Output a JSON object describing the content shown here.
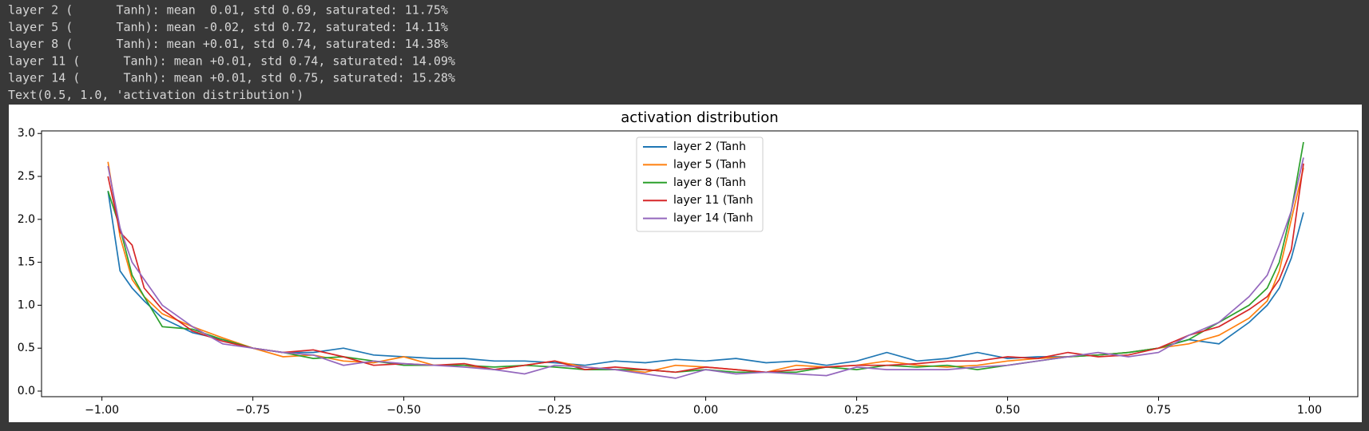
{
  "output_lines": [
    "layer 2 (      Tanh): mean  0.01, std 0.69, saturated: 11.75%",
    "layer 5 (      Tanh): mean -0.02, std 0.72, saturated: 14.11%",
    "layer 8 (      Tanh): mean +0.01, std 0.74, saturated: 14.38%",
    "layer 11 (      Tanh): mean +0.01, std 0.74, saturated: 14.09%",
    "layer 14 (      Tanh): mean +0.01, std 0.75, saturated: 15.28%",
    "Text(0.5, 1.0, 'activation distribution')"
  ],
  "chart_data": {
    "type": "line",
    "title": "activation distribution",
    "x": [
      -0.99,
      -0.97,
      -0.95,
      -0.93,
      -0.9,
      -0.85,
      -0.8,
      -0.75,
      -0.7,
      -0.65,
      -0.6,
      -0.55,
      -0.5,
      -0.45,
      -0.4,
      -0.35,
      -0.3,
      -0.25,
      -0.2,
      -0.15,
      -0.1,
      -0.05,
      0,
      0.05,
      0.1,
      0.15,
      0.2,
      0.25,
      0.3,
      0.35,
      0.4,
      0.45,
      0.5,
      0.55,
      0.6,
      0.65,
      0.7,
      0.75,
      0.8,
      0.85,
      0.9,
      0.93,
      0.95,
      0.97,
      0.99
    ],
    "series": [
      {
        "name": "layer 2 (Tanh",
        "color": "#1f77b4",
        "values": [
          2.33,
          1.4,
          1.2,
          1.05,
          0.85,
          0.68,
          0.6,
          0.5,
          0.45,
          0.45,
          0.5,
          0.42,
          0.4,
          0.38,
          0.38,
          0.35,
          0.35,
          0.33,
          0.3,
          0.35,
          0.33,
          0.37,
          0.35,
          0.38,
          0.33,
          0.35,
          0.3,
          0.35,
          0.45,
          0.35,
          0.38,
          0.45,
          0.38,
          0.4,
          0.4,
          0.42,
          0.45,
          0.5,
          0.6,
          0.55,
          0.8,
          1.0,
          1.2,
          1.55,
          2.08
        ]
      },
      {
        "name": "layer 5 (Tanh",
        "color": "#ff7f0e",
        "values": [
          2.67,
          1.8,
          1.3,
          1.1,
          0.9,
          0.75,
          0.62,
          0.5,
          0.4,
          0.42,
          0.35,
          0.33,
          0.4,
          0.3,
          0.3,
          0.25,
          0.3,
          0.35,
          0.28,
          0.25,
          0.22,
          0.3,
          0.28,
          0.25,
          0.22,
          0.3,
          0.28,
          0.3,
          0.35,
          0.3,
          0.28,
          0.3,
          0.35,
          0.38,
          0.4,
          0.42,
          0.45,
          0.5,
          0.55,
          0.65,
          0.85,
          1.05,
          1.4,
          2.0,
          2.6
        ]
      },
      {
        "name": "layer 8 (Tanh",
        "color": "#2ca02c",
        "values": [
          2.33,
          1.9,
          1.35,
          1.1,
          0.75,
          0.72,
          0.6,
          0.5,
          0.45,
          0.38,
          0.4,
          0.35,
          0.3,
          0.3,
          0.3,
          0.28,
          0.3,
          0.28,
          0.25,
          0.25,
          0.25,
          0.22,
          0.25,
          0.22,
          0.22,
          0.22,
          0.28,
          0.25,
          0.3,
          0.28,
          0.3,
          0.25,
          0.3,
          0.35,
          0.4,
          0.42,
          0.45,
          0.5,
          0.6,
          0.8,
          1.0,
          1.2,
          1.5,
          2.1,
          2.9
        ]
      },
      {
        "name": "layer 11 (Tanh",
        "color": "#d62728",
        "values": [
          2.5,
          1.85,
          1.7,
          1.2,
          0.95,
          0.7,
          0.58,
          0.5,
          0.45,
          0.48,
          0.4,
          0.3,
          0.32,
          0.3,
          0.32,
          0.25,
          0.3,
          0.35,
          0.25,
          0.28,
          0.25,
          0.22,
          0.28,
          0.25,
          0.22,
          0.25,
          0.28,
          0.3,
          0.3,
          0.32,
          0.35,
          0.35,
          0.4,
          0.38,
          0.45,
          0.4,
          0.42,
          0.5,
          0.65,
          0.75,
          0.95,
          1.1,
          1.3,
          1.65,
          2.65
        ]
      },
      {
        "name": "layer 14 (Tanh",
        "color": "#9467bd",
        "values": [
          2.62,
          1.9,
          1.5,
          1.3,
          1.0,
          0.75,
          0.55,
          0.5,
          0.45,
          0.42,
          0.3,
          0.35,
          0.32,
          0.3,
          0.28,
          0.25,
          0.2,
          0.3,
          0.28,
          0.25,
          0.2,
          0.15,
          0.25,
          0.2,
          0.22,
          0.2,
          0.18,
          0.28,
          0.25,
          0.25,
          0.25,
          0.28,
          0.3,
          0.35,
          0.4,
          0.45,
          0.4,
          0.45,
          0.65,
          0.8,
          1.1,
          1.35,
          1.7,
          2.1,
          2.72
        ]
      }
    ],
    "xlim": [
      -1.1,
      1.08
    ],
    "ylim": [
      -0.065,
      3.03
    ],
    "xticks": [
      {
        "value": -1,
        "label": "−1.00"
      },
      {
        "value": -0.75,
        "label": "−0.75"
      },
      {
        "value": -0.5,
        "label": "−0.50"
      },
      {
        "value": -0.25,
        "label": "−0.25"
      },
      {
        "value": 0,
        "label": "0.00"
      },
      {
        "value": 0.25,
        "label": "0.25"
      },
      {
        "value": 0.5,
        "label": "0.50"
      },
      {
        "value": 0.75,
        "label": "0.75"
      },
      {
        "value": 1,
        "label": "1.00"
      }
    ],
    "yticks": [
      {
        "value": 0,
        "label": "0.0"
      },
      0.5,
      {
        "value": 1,
        "label": "1.0"
      },
      1.5,
      {
        "value": 2,
        "label": "2.0"
      },
      2.5,
      {
        "value": 3,
        "label": "3.0"
      }
    ],
    "legend": "upper center"
  }
}
